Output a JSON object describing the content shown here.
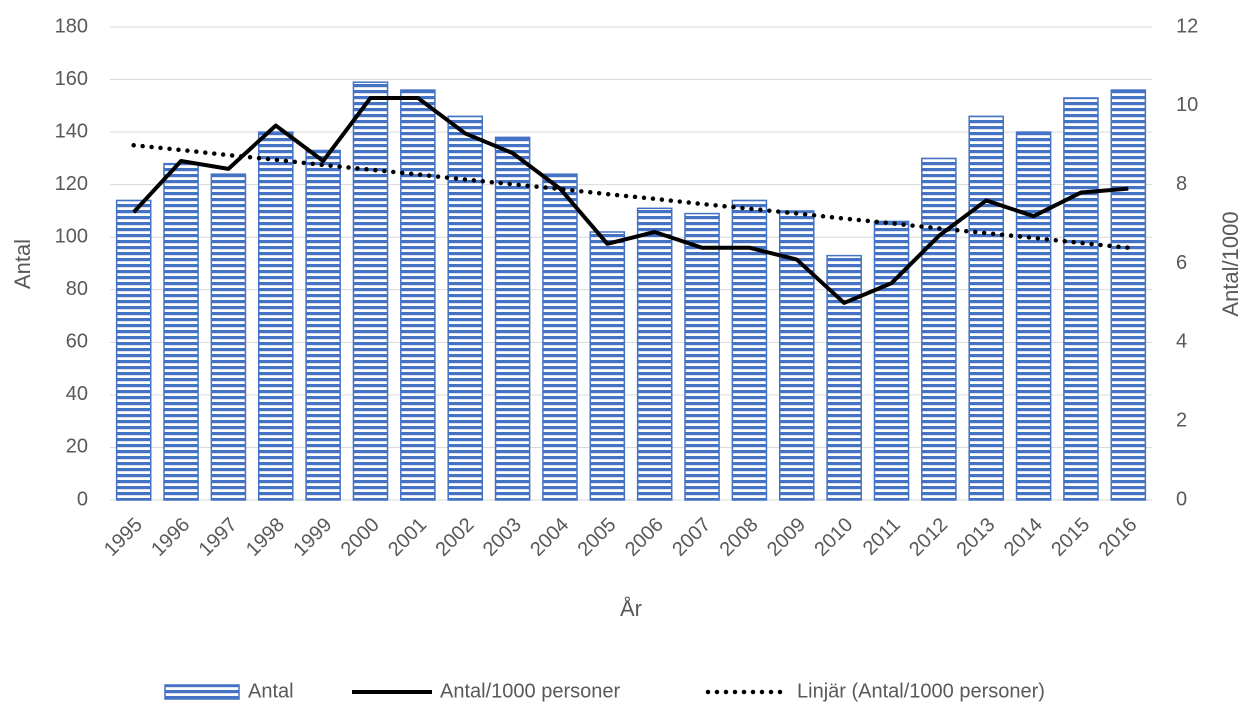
{
  "chart_data": {
    "type": "bar_line",
    "categories": [
      "1995",
      "1996",
      "1997",
      "1998",
      "1999",
      "2000",
      "2001",
      "2002",
      "2003",
      "2004",
      "2005",
      "2006",
      "2007",
      "2008",
      "2009",
      "2010",
      "2011",
      "2012",
      "2013",
      "2014",
      "2015",
      "2016"
    ],
    "series": [
      {
        "name": "Antal",
        "type": "bar",
        "color": "#4472c4",
        "axis": "y",
        "values": [
          114,
          128,
          124,
          140,
          133,
          159,
          156,
          146,
          138,
          124,
          102,
          111,
          109,
          114,
          110,
          93,
          106,
          130,
          146,
          140,
          153,
          156
        ]
      },
      {
        "name": "Antal/1000 personer",
        "type": "line",
        "color": "#000000",
        "axis": "y2",
        "values": [
          7.3,
          8.6,
          8.4,
          9.5,
          8.6,
          10.2,
          10.2,
          9.3,
          8.8,
          7.9,
          6.5,
          6.8,
          6.4,
          6.4,
          6.1,
          5.0,
          5.5,
          6.7,
          7.6,
          7.2,
          7.8,
          7.9
        ]
      },
      {
        "name": "Linjär (Antal/1000 personer)",
        "type": "dotted",
        "color": "#000000",
        "axis": "y2",
        "values": [
          9.0,
          8.88,
          8.75,
          8.63,
          8.5,
          8.38,
          8.26,
          8.13,
          8.01,
          7.89,
          7.76,
          7.64,
          7.51,
          7.39,
          7.27,
          7.14,
          7.02,
          6.89,
          6.77,
          6.65,
          6.52,
          6.4
        ]
      }
    ],
    "ylabel": "Antal",
    "y2label": "Antal/1000",
    "xlabel": "År",
    "ylim": [
      0,
      180
    ],
    "yticks": [
      0,
      20,
      40,
      60,
      80,
      100,
      120,
      140,
      160,
      180
    ],
    "y2lim": [
      0,
      12
    ],
    "y2ticks": [
      0,
      2,
      4,
      6,
      8,
      10,
      12
    ],
    "grid": true,
    "legend": "bottom"
  }
}
